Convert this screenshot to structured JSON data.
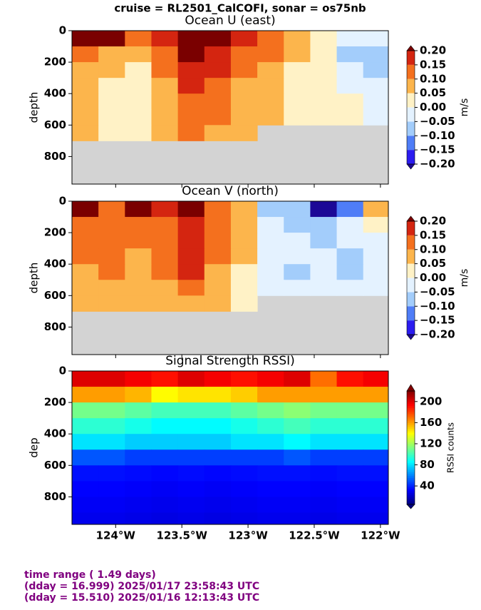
{
  "title": "cruise = RL2501_CalCOFI,  sonar = os75nb",
  "footer": [
    "time range ( 1.49 days)",
    "(dday = 16.999) 2025/01/17 23:58:43 UTC",
    "(dday = 15.510) 2025/01/16 12:13:43 UTC"
  ],
  "chart_data": [
    {
      "type": "heatmap",
      "title": "Ocean U (east)",
      "y_label": "depth",
      "colorbar_label": "m/s",
      "x": [
        -124.23,
        -124.03,
        -123.83,
        -123.63,
        -123.43,
        -123.23,
        -123.03,
        -122.83,
        -122.63,
        -122.43,
        -122.23,
        -122.03
      ],
      "y": [
        50,
        150,
        250,
        350,
        450,
        550,
        650,
        750,
        850,
        950
      ],
      "values": [
        [
          0.22,
          0.2,
          0.1,
          0.15,
          0.22,
          0.2,
          0.15,
          0.1,
          0.08,
          0.03,
          -0.05,
          -0.05
        ],
        [
          0.12,
          0.08,
          0.05,
          0.12,
          0.2,
          0.18,
          0.12,
          0.1,
          0.06,
          0.02,
          -0.07,
          -0.08
        ],
        [
          0.07,
          0.06,
          0.04,
          0.1,
          0.18,
          0.15,
          0.1,
          0.08,
          0.04,
          0.02,
          -0.02,
          -0.06
        ],
        [
          0.06,
          0.04,
          0.03,
          0.08,
          0.15,
          0.12,
          0.08,
          0.06,
          0.04,
          0.02,
          -0.01,
          -0.05
        ],
        [
          0.05,
          0.03,
          0.02,
          0.08,
          0.14,
          0.1,
          0.07,
          0.06,
          0.03,
          0.02,
          0.0,
          -0.04
        ],
        [
          0.06,
          0.02,
          0.02,
          0.07,
          0.12,
          0.1,
          0.06,
          0.05,
          0.03,
          0.01,
          0.0,
          -0.03
        ],
        [
          0.05,
          0.02,
          0.02,
          0.06,
          0.1,
          0.08,
          0.05,
          null,
          null,
          null,
          null,
          null
        ],
        [
          null,
          null,
          null,
          null,
          null,
          null,
          null,
          null,
          null,
          null,
          null,
          null
        ],
        [
          null,
          null,
          null,
          null,
          null,
          null,
          null,
          null,
          null,
          null,
          null,
          null
        ],
        [
          null,
          null,
          null,
          null,
          null,
          null,
          null,
          null,
          null,
          null,
          null,
          null
        ]
      ],
      "levels": [
        -0.2,
        -0.15,
        -0.1,
        -0.05,
        0.0,
        0.05,
        0.1,
        0.15,
        0.2
      ],
      "colors": [
        "#2b1cf0",
        "#4f7df7",
        "#a3cdfb",
        "#e4f2ff",
        "#fff2c6",
        "#fcb54c",
        "#f4701e",
        "#d42510"
      ],
      "under_color": "#1c0896",
      "over_color": "#7a0000",
      "missing_color": "#d3d3d3",
      "ylim": [
        0,
        975
      ],
      "y_inverted": true,
      "yticks": [
        0,
        200,
        400,
        600,
        800
      ],
      "cticks": [
        {
          "value": 0.2,
          "label": "0.20"
        },
        {
          "value": 0.15,
          "label": "0.15"
        },
        {
          "value": 0.1,
          "label": "0.10"
        },
        {
          "value": 0.05,
          "label": "0.05"
        },
        {
          "value": 0.0,
          "label": "0.00"
        },
        {
          "value": -0.05,
          "label": "−0.05"
        },
        {
          "value": -0.1,
          "label": "−0.10"
        },
        {
          "value": -0.15,
          "label": "−0.15"
        },
        {
          "value": -0.2,
          "label": "−0.20"
        }
      ]
    },
    {
      "type": "heatmap",
      "title": "Ocean V (north)",
      "y_label": "depth",
      "colorbar_label": "m/s",
      "x": [
        -124.23,
        -124.03,
        -123.83,
        -123.63,
        -123.43,
        -123.23,
        -123.03,
        -122.83,
        -122.63,
        -122.43,
        -122.23,
        -122.03
      ],
      "y": [
        50,
        150,
        250,
        350,
        450,
        550,
        650,
        750,
        850,
        950
      ],
      "values": [
        [
          0.22,
          0.1,
          0.22,
          0.15,
          0.2,
          0.1,
          0.05,
          -0.1,
          -0.08,
          -0.22,
          -0.15,
          0.05
        ],
        [
          0.12,
          0.1,
          0.14,
          0.12,
          0.15,
          0.1,
          0.05,
          -0.03,
          -0.06,
          -0.08,
          -0.05,
          0.0
        ],
        [
          0.1,
          0.1,
          0.12,
          0.1,
          0.17,
          0.1,
          0.05,
          -0.02,
          -0.05,
          -0.06,
          -0.05,
          -0.02
        ],
        [
          0.1,
          0.1,
          0.08,
          0.1,
          0.18,
          0.1,
          0.05,
          -0.02,
          -0.04,
          -0.05,
          -0.06,
          -0.03
        ],
        [
          0.08,
          0.1,
          0.06,
          0.1,
          0.16,
          0.08,
          0.04,
          -0.03,
          -0.06,
          -0.04,
          -0.06,
          -0.04
        ],
        [
          0.06,
          0.08,
          0.06,
          0.08,
          0.1,
          0.08,
          0.04,
          -0.02,
          -0.04,
          -0.04,
          -0.05,
          -0.05
        ],
        [
          0.05,
          0.07,
          0.06,
          0.07,
          0.08,
          0.06,
          0.03,
          null,
          null,
          null,
          null,
          null
        ],
        [
          null,
          null,
          null,
          null,
          null,
          null,
          null,
          null,
          null,
          null,
          null,
          null
        ],
        [
          null,
          null,
          null,
          null,
          null,
          null,
          null,
          null,
          null,
          null,
          null,
          null
        ],
        [
          null,
          null,
          null,
          null,
          null,
          null,
          null,
          null,
          null,
          null,
          null,
          null
        ]
      ],
      "levels": [
        -0.2,
        -0.15,
        -0.1,
        -0.05,
        0.0,
        0.05,
        0.1,
        0.15,
        0.2
      ],
      "colors": [
        "#2b1cf0",
        "#4f7df7",
        "#a3cdfb",
        "#e4f2ff",
        "#fff2c6",
        "#fcb54c",
        "#f4701e",
        "#d42510"
      ],
      "under_color": "#1c0896",
      "over_color": "#7a0000",
      "missing_color": "#d3d3d3",
      "ylim": [
        0,
        975
      ],
      "y_inverted": true,
      "yticks": [
        0,
        200,
        400,
        600,
        800
      ],
      "cticks": [
        {
          "value": 0.2,
          "label": "0.20"
        },
        {
          "value": 0.15,
          "label": "0.15"
        },
        {
          "value": 0.1,
          "label": "0.10"
        },
        {
          "value": 0.05,
          "label": "0.05"
        },
        {
          "value": 0.0,
          "label": "0.00"
        },
        {
          "value": -0.05,
          "label": "−0.05"
        },
        {
          "value": -0.1,
          "label": "−0.10"
        },
        {
          "value": -0.15,
          "label": "−0.15"
        },
        {
          "value": -0.2,
          "label": "−0.20"
        }
      ]
    },
    {
      "type": "heatmap",
      "title": "Signal Strength RSSI)",
      "y_label": "dep",
      "colorbar_label": "RSSI counts",
      "colormap": "jet",
      "x": [
        -124.23,
        -124.03,
        -123.83,
        -123.63,
        -123.43,
        -123.23,
        -123.03,
        -122.83,
        -122.63,
        -122.43,
        -122.23,
        -122.03
      ],
      "y": [
        50,
        150,
        250,
        350,
        450,
        550,
        650,
        750,
        850,
        950
      ],
      "values": [
        [
          200,
          200,
          195,
          190,
          200,
          195,
          190,
          195,
          200,
          170,
          190,
          195
        ],
        [
          160,
          160,
          155,
          140,
          145,
          145,
          150,
          160,
          160,
          160,
          160,
          160
        ],
        [
          110,
          110,
          105,
          100,
          100,
          100,
          105,
          110,
          115,
          110,
          110,
          110
        ],
        [
          95,
          95,
          90,
          85,
          85,
          85,
          90,
          95,
          100,
          95,
          95,
          95
        ],
        [
          80,
          80,
          75,
          75,
          75,
          75,
          80,
          80,
          85,
          80,
          80,
          80
        ],
        [
          50,
          50,
          45,
          45,
          45,
          45,
          45,
          45,
          50,
          45,
          45,
          45
        ],
        [
          35,
          35,
          34,
          33,
          34,
          33,
          34,
          35,
          35,
          34,
          35,
          35
        ],
        [
          32,
          32,
          31,
          30,
          31,
          30,
          31,
          32,
          32,
          31,
          32,
          32
        ],
        [
          30,
          30,
          29,
          28,
          29,
          28,
          29,
          30,
          30,
          29,
          30,
          30
        ],
        [
          28,
          28,
          27,
          26,
          27,
          26,
          27,
          28,
          28,
          27,
          28,
          28
        ]
      ],
      "clim": [
        5,
        220
      ],
      "cticks": [
        40,
        80,
        120,
        160,
        200
      ],
      "ylim": [
        0,
        975
      ],
      "y_inverted": true,
      "yticks": [
        0,
        200,
        400,
        600,
        800
      ],
      "xlim": [
        -124.33,
        -121.94
      ],
      "xticks": [
        {
          "value": -124,
          "label": "124°W"
        },
        {
          "value": -123.5,
          "label": "123.5°W"
        },
        {
          "value": -123,
          "label": "123°W"
        },
        {
          "value": -122.5,
          "label": "122.5°W"
        },
        {
          "value": -122,
          "label": "122°W"
        }
      ]
    }
  ]
}
